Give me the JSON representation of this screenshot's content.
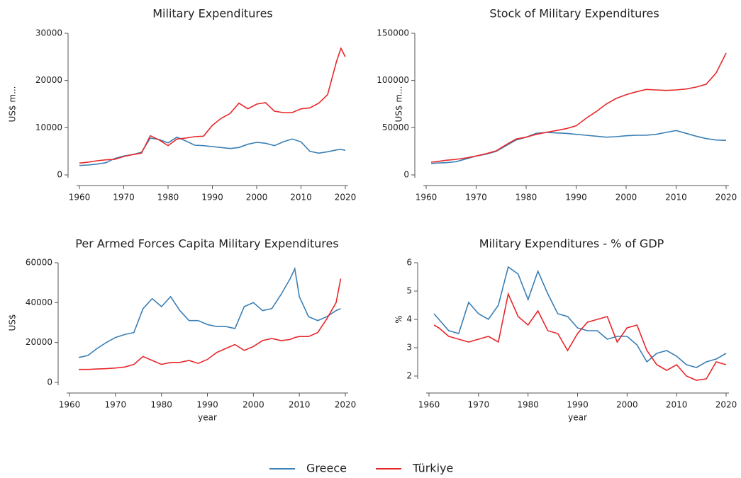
{
  "chart_data": [
    {
      "type": "line",
      "title": "Military Expenditures",
      "y_label": "US$ m...",
      "x": [
        1960,
        1962,
        1964,
        1966,
        1968,
        1970,
        1972,
        1974,
        1976,
        1978,
        1980,
        1982,
        1984,
        1986,
        1988,
        1990,
        1992,
        1994,
        1996,
        1998,
        2000,
        2002,
        2004,
        2006,
        2008,
        2010,
        2012,
        2014,
        2016,
        2018,
        2019,
        2020
      ],
      "series": [
        {
          "name": "Greece",
          "color": "#3a7fb5",
          "values": [
            2000,
            2100,
            2300,
            2600,
            3500,
            4000,
            4300,
            4800,
            7800,
            7500,
            6800,
            8000,
            7200,
            6300,
            6200,
            6000,
            5800,
            5600,
            5800,
            6500,
            6900,
            6700,
            6200,
            7000,
            7600,
            7000,
            5000,
            4600,
            4900,
            5300,
            5400,
            5200
          ]
        },
        {
          "name": "Türkiye",
          "color": "#e8272a",
          "values": [
            2500,
            2700,
            3000,
            3200,
            3300,
            3900,
            4300,
            4600,
            8300,
            7400,
            6200,
            7600,
            7800,
            8100,
            8200,
            10500,
            12000,
            13000,
            15200,
            14000,
            15000,
            15300,
            13500,
            13200,
            13200,
            14000,
            14200,
            15200,
            17000,
            24000,
            26800,
            25000
          ]
        }
      ],
      "xlim": [
        1960,
        2020
      ],
      "xticks": [
        1960,
        1970,
        1980,
        1990,
        2000,
        2010,
        2020
      ],
      "ylim": [
        0,
        30000
      ],
      "yticks": [
        0,
        10000,
        20000,
        30000
      ]
    },
    {
      "type": "line",
      "title": "Stock of Military Expenditures",
      "y_label": "US$ m...",
      "x": [
        1961,
        1962,
        1964,
        1966,
        1968,
        1970,
        1972,
        1974,
        1976,
        1978,
        1980,
        1982,
        1984,
        1986,
        1988,
        1990,
        1992,
        1994,
        1996,
        1998,
        2000,
        2002,
        2004,
        2006,
        2008,
        2010,
        2012,
        2014,
        2016,
        2018,
        2020
      ],
      "series": [
        {
          "color": "#3a7fb5",
          "values": [
            12000,
            12500,
            13000,
            14000,
            17000,
            20000,
            22000,
            25000,
            31000,
            37000,
            40000,
            44000,
            45000,
            44500,
            44000,
            43000,
            42000,
            41000,
            40000,
            40500,
            41500,
            42000,
            42000,
            43000,
            45000,
            47000,
            44000,
            41000,
            38500,
            37000,
            36500
          ]
        },
        {
          "color": "#e8272a",
          "values": [
            13500,
            14000,
            15500,
            16500,
            18000,
            20000,
            22500,
            25500,
            32000,
            38000,
            40000,
            43000,
            45000,
            47000,
            49000,
            52000,
            60000,
            67000,
            75000,
            81000,
            85000,
            88000,
            90500,
            90000,
            89500,
            90000,
            91000,
            93000,
            96000,
            108000,
            129000
          ]
        }
      ],
      "xlim": [
        1960,
        2020
      ],
      "xticks": [
        1960,
        1970,
        1980,
        1990,
        2000,
        2010,
        2020
      ],
      "ylim": [
        0,
        150000
      ],
      "yticks": [
        0,
        50000,
        100000,
        150000
      ]
    },
    {
      "type": "line",
      "title": "Per Armed Forces Capita Military Expenditures",
      "y_label": "US$",
      "x_label": "year",
      "x": [
        1962,
        1964,
        1966,
        1968,
        1970,
        1972,
        1974,
        1976,
        1978,
        1980,
        1982,
        1984,
        1986,
        1988,
        1990,
        1992,
        1994,
        1996,
        1998,
        2000,
        2002,
        2004,
        2006,
        2008,
        2009,
        2010,
        2012,
        2014,
        2016,
        2018,
        2019
      ],
      "series": [
        {
          "color": "#3a7fb5",
          "values": [
            12500,
            13500,
            17000,
            20000,
            22500,
            24000,
            25000,
            37000,
            42000,
            38000,
            43000,
            36000,
            31000,
            31000,
            29000,
            28000,
            28000,
            27000,
            38000,
            40000,
            36000,
            37000,
            44000,
            52000,
            57000,
            43000,
            33000,
            31000,
            33000,
            36000,
            37000
          ]
        },
        {
          "color": "#e8272a",
          "values": [
            6500,
            6500,
            6700,
            6900,
            7200,
            7700,
            9000,
            13000,
            11000,
            9000,
            10000,
            10000,
            11000,
            9500,
            11500,
            15000,
            17000,
            19000,
            16000,
            18000,
            21000,
            22000,
            21000,
            21500,
            22500,
            23000,
            23000,
            25000,
            32000,
            40000,
            52000
          ]
        }
      ],
      "xlim": [
        1960,
        2020
      ],
      "xticks": [
        1960,
        1970,
        1980,
        1990,
        2000,
        2010,
        2020
      ],
      "ylim": [
        0,
        60000
      ],
      "yticks": [
        0,
        20000,
        40000,
        60000
      ]
    },
    {
      "type": "line",
      "title": "Military Expenditures - % of GDP",
      "y_label": "%",
      "x_label": "year",
      "x": [
        1961,
        1962,
        1964,
        1966,
        1968,
        1970,
        1972,
        1974,
        1976,
        1978,
        1980,
        1982,
        1984,
        1986,
        1988,
        1990,
        1992,
        1994,
        1996,
        1998,
        2000,
        2002,
        2004,
        2006,
        2008,
        2010,
        2012,
        2014,
        2016,
        2018,
        2020
      ],
      "series": [
        {
          "color": "#3a7fb5",
          "values": [
            4.2,
            4.0,
            3.6,
            3.5,
            4.6,
            4.2,
            4.0,
            4.5,
            5.85,
            5.6,
            4.7,
            5.7,
            4.9,
            4.2,
            4.1,
            3.7,
            3.6,
            3.6,
            3.3,
            3.4,
            3.4,
            3.1,
            2.5,
            2.8,
            2.9,
            2.7,
            2.4,
            2.3,
            2.5,
            2.6,
            2.8
          ]
        },
        {
          "color": "#e8272a",
          "values": [
            3.8,
            3.7,
            3.4,
            3.3,
            3.2,
            3.3,
            3.4,
            3.2,
            4.9,
            4.1,
            3.8,
            4.3,
            3.6,
            3.5,
            2.9,
            3.5,
            3.9,
            4.0,
            4.1,
            3.2,
            3.7,
            3.8,
            2.9,
            2.4,
            2.2,
            2.4,
            2.0,
            1.85,
            1.9,
            2.5,
            2.4
          ]
        }
      ],
      "xlim": [
        1960,
        2020
      ],
      "xticks": [
        1960,
        1970,
        1980,
        1990,
        2000,
        2010,
        2020
      ],
      "ylim": [
        2,
        6
      ],
      "yticks": [
        2,
        3,
        4,
        5,
        6
      ]
    }
  ]
}
